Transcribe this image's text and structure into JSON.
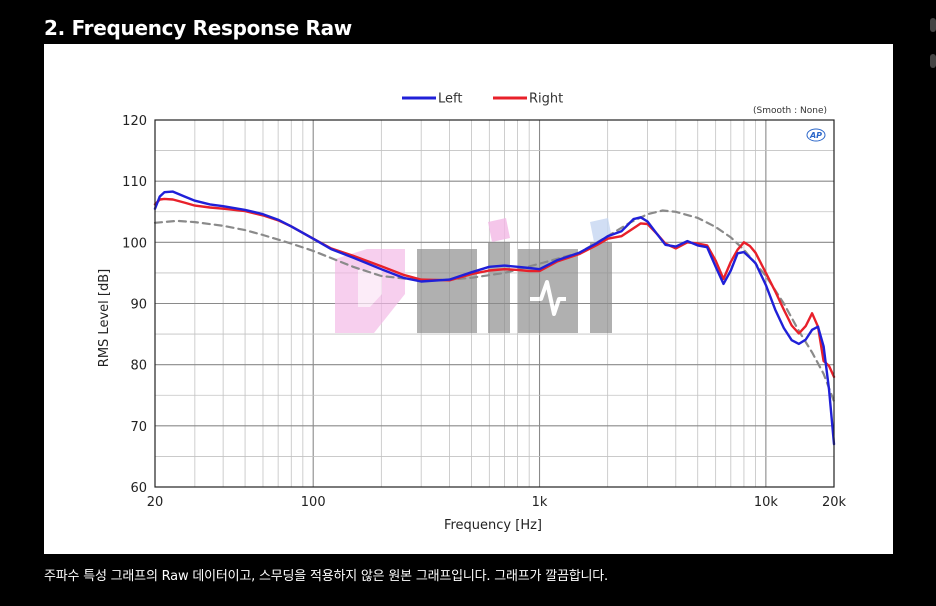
{
  "header": {
    "title": "2. Frequency Response Raw"
  },
  "caption": "주파수 특성 그래프의 Raw 데이터이고, 스무딩을 적용하지 않은 원본 그래프입니다. 그래프가 깔끔합니다.",
  "watermark": {
    "brand": "ozikl",
    "colors": [
      "#f3b9e6",
      "#c6d7f2",
      "#8c8c8c"
    ]
  },
  "chart_data": {
    "type": "line",
    "xlabel": "Frequency [Hz]",
    "ylabel": "RMS Level [dB]",
    "x_scale": "log",
    "xlim": [
      20,
      20000
    ],
    "ylim": [
      60,
      120
    ],
    "x_tick_values": [
      20,
      100,
      1000,
      10000,
      20000
    ],
    "x_tick_labels": [
      "20",
      "100",
      "1k",
      "10k",
      "20k"
    ],
    "y_ticks": [
      60,
      70,
      80,
      90,
      100,
      110,
      120
    ],
    "grid": true,
    "legend_position": "top-center",
    "annotation": "(Smooth : None)",
    "logo_text": "AP",
    "series": [
      {
        "name": "Left",
        "color": "#2020d8",
        "x": [
          20,
          21,
          22,
          24,
          27,
          30,
          35,
          40,
          50,
          60,
          70,
          80,
          100,
          120,
          150,
          200,
          250,
          300,
          400,
          500,
          600,
          700,
          800,
          900,
          1000,
          1200,
          1500,
          1800,
          2000,
          2300,
          2600,
          2800,
          3000,
          3300,
          3600,
          4000,
          4500,
          5000,
          5500,
          6000,
          6500,
          7000,
          7500,
          8000,
          8500,
          9000,
          10000,
          11000,
          12000,
          13000,
          14000,
          15000,
          16000,
          17000,
          18000,
          19000,
          20000
        ],
        "y": [
          105.5,
          107.5,
          108.2,
          108.3,
          107.5,
          106.8,
          106.2,
          105.9,
          105.3,
          104.6,
          103.7,
          102.6,
          100.6,
          98.9,
          97.5,
          95.6,
          94.2,
          93.6,
          93.9,
          95.1,
          96.0,
          96.2,
          96.0,
          95.8,
          95.6,
          97.1,
          98.3,
          99.9,
          101.0,
          101.8,
          103.8,
          104.1,
          103.4,
          101.4,
          99.6,
          99.3,
          100.2,
          99.5,
          99.2,
          96.0,
          93.2,
          95.4,
          98.2,
          98.4,
          97.5,
          96.6,
          93.0,
          89.0,
          86.0,
          84.0,
          83.4,
          84.1,
          85.7,
          86.2,
          83.0,
          76.0,
          67.0
        ]
      },
      {
        "name": "Right",
        "color": "#e8202a",
        "x": [
          20,
          21,
          22,
          24,
          27,
          30,
          35,
          40,
          50,
          60,
          70,
          80,
          100,
          120,
          150,
          200,
          250,
          300,
          400,
          500,
          600,
          700,
          800,
          900,
          1000,
          1200,
          1500,
          1800,
          2000,
          2300,
          2600,
          2800,
          3000,
          3300,
          3600,
          4000,
          4500,
          5000,
          5500,
          6000,
          6500,
          7000,
          7500,
          8000,
          8500,
          9000,
          10000,
          11000,
          12000,
          13000,
          14000,
          15000,
          16000,
          17000,
          18000,
          19000,
          20000
        ],
        "y": [
          106.2,
          107.0,
          107.1,
          107.0,
          106.5,
          106.0,
          105.7,
          105.5,
          105.1,
          104.4,
          103.6,
          102.6,
          100.6,
          99.0,
          97.8,
          96.1,
          94.7,
          93.9,
          93.8,
          94.8,
          95.4,
          95.6,
          95.5,
          95.3,
          95.3,
          96.9,
          98.1,
          99.6,
          100.6,
          101.0,
          102.3,
          103.1,
          103.0,
          101.4,
          99.8,
          99.0,
          100.0,
          99.8,
          99.5,
          97.0,
          94.0,
          96.8,
          98.8,
          100.0,
          99.4,
          98.3,
          95.0,
          92.0,
          89.0,
          86.4,
          85.1,
          86.3,
          88.4,
          86.2,
          80.6,
          79.8,
          78.0
        ]
      },
      {
        "name": "",
        "color": "#8a8a8a",
        "dashed": true,
        "x": [
          20,
          25,
          30,
          40,
          50,
          60,
          80,
          100,
          150,
          200,
          300,
          400,
          500,
          700,
          1000,
          1500,
          2000,
          2500,
          3000,
          3500,
          4000,
          5000,
          6000,
          7000,
          8000,
          10000,
          12000,
          14000,
          16000,
          18000,
          20000
        ],
        "y": [
          103.2,
          103.5,
          103.3,
          102.7,
          102.0,
          101.2,
          99.8,
          98.6,
          96.0,
          94.5,
          93.8,
          93.9,
          94.2,
          95.0,
          96.5,
          98.3,
          101.0,
          103.2,
          104.6,
          105.2,
          105.0,
          104.0,
          102.5,
          100.8,
          98.8,
          94.5,
          90.0,
          85.5,
          82.0,
          78.5,
          74.0
        ]
      }
    ]
  }
}
